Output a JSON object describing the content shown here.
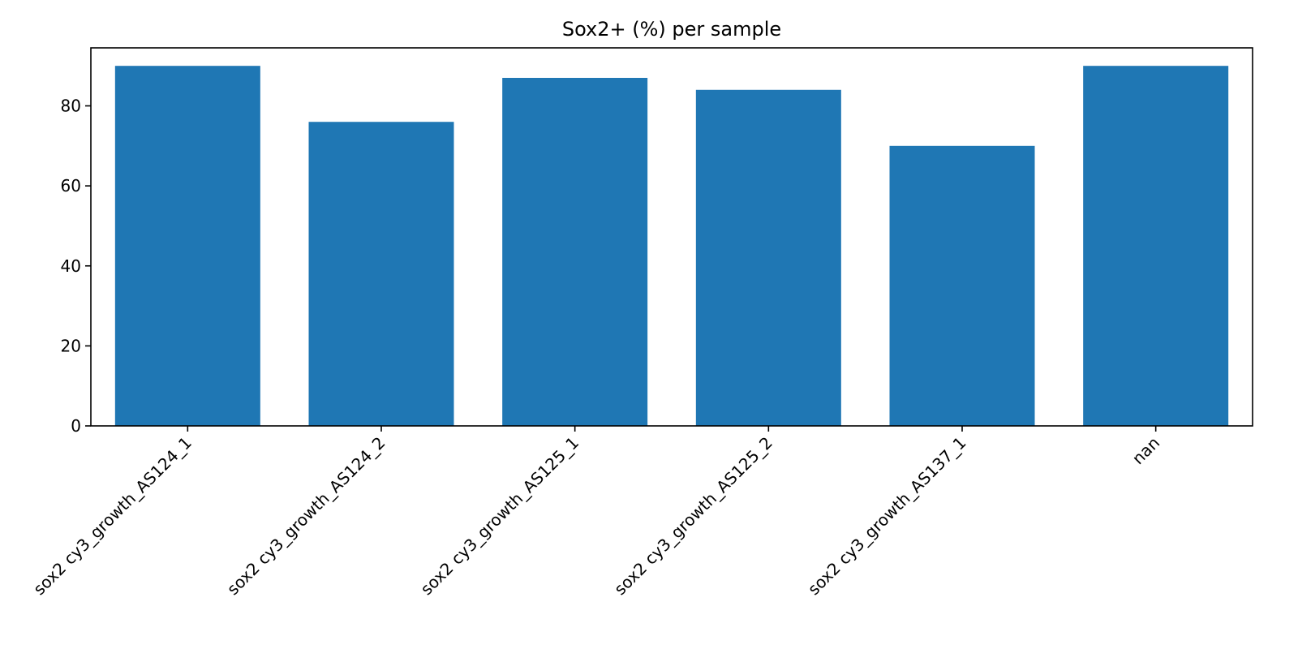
{
  "chart_data": {
    "type": "bar",
    "title": "Sox2+ (%) per sample",
    "xlabel": "",
    "ylabel": "",
    "categories": [
      "sox2 cy3_growth_AS124_1",
      "sox2 cy3_growth_AS124_2",
      "sox2 cy3_growth_AS125_1",
      "sox2 cy3_growth_AS125_2",
      "sox2 cy3_growth_AS137_1",
      "nan"
    ],
    "values": [
      90,
      76,
      87,
      84,
      70,
      90
    ],
    "ylim": [
      0,
      94.5
    ],
    "yticks": [
      0,
      20,
      40,
      60,
      80
    ],
    "grid": false,
    "legend": "none",
    "bar_color": "#1f77b4"
  }
}
